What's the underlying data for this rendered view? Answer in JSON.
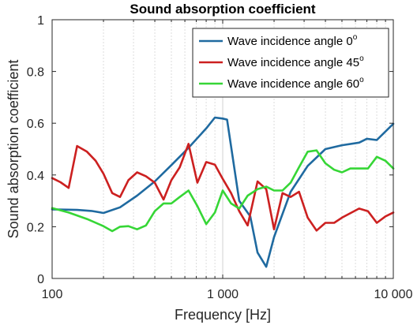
{
  "chart_data": {
    "type": "line",
    "title": "Sound absorption coefficient",
    "xlabel": "Frequency [Hz]",
    "ylabel": "Sound absorption coefficient",
    "xscale": "log",
    "xlim": [
      100,
      10000
    ],
    "ylim": [
      0,
      1
    ],
    "grid": "x-major-and-minor",
    "legend_position": "top-right",
    "x_ticks": [
      {
        "value": 100,
        "label": "100"
      },
      {
        "value": 1000,
        "label": "1 000"
      },
      {
        "value": 10000,
        "label": "10 000"
      }
    ],
    "y_ticks": [
      {
        "value": 0,
        "label": "0"
      },
      {
        "value": 0.2,
        "label": "0.2"
      },
      {
        "value": 0.4,
        "label": "0.4"
      },
      {
        "value": 0.6,
        "label": "0.6"
      },
      {
        "value": 0.8,
        "label": "0.8"
      },
      {
        "value": 1,
        "label": "1"
      }
    ],
    "series": [
      {
        "name": "Wave incidence angle 0",
        "name_sup": "o",
        "color": "#1f6aa0",
        "points": [
          [
            100,
            0.267
          ],
          [
            140,
            0.265
          ],
          [
            170,
            0.261
          ],
          [
            200,
            0.253
          ],
          [
            250,
            0.275
          ],
          [
            315,
            0.32
          ],
          [
            400,
            0.375
          ],
          [
            500,
            0.438
          ],
          [
            630,
            0.505
          ],
          [
            800,
            0.58
          ],
          [
            900,
            0.622
          ],
          [
            1000,
            0.618
          ],
          [
            1060,
            0.614
          ],
          [
            1250,
            0.3
          ],
          [
            1450,
            0.24
          ],
          [
            1600,
            0.1
          ],
          [
            1800,
            0.045
          ],
          [
            2000,
            0.16
          ],
          [
            2500,
            0.335
          ],
          [
            3150,
            0.435
          ],
          [
            4000,
            0.5
          ],
          [
            5000,
            0.515
          ],
          [
            6300,
            0.525
          ],
          [
            7000,
            0.54
          ],
          [
            8000,
            0.535
          ],
          [
            10000,
            0.598
          ]
        ]
      },
      {
        "name": "Wave incidence angle 45",
        "name_sup": "o",
        "color": "#cc2020",
        "points": [
          [
            100,
            0.388
          ],
          [
            112,
            0.372
          ],
          [
            125,
            0.35
          ],
          [
            140,
            0.512
          ],
          [
            160,
            0.49
          ],
          [
            180,
            0.455
          ],
          [
            200,
            0.405
          ],
          [
            225,
            0.33
          ],
          [
            250,
            0.315
          ],
          [
            280,
            0.38
          ],
          [
            315,
            0.41
          ],
          [
            355,
            0.395
          ],
          [
            400,
            0.37
          ],
          [
            450,
            0.305
          ],
          [
            500,
            0.38
          ],
          [
            560,
            0.43
          ],
          [
            630,
            0.52
          ],
          [
            710,
            0.37
          ],
          [
            800,
            0.45
          ],
          [
            900,
            0.44
          ],
          [
            1000,
            0.385
          ],
          [
            1120,
            0.33
          ],
          [
            1250,
            0.26
          ],
          [
            1400,
            0.205
          ],
          [
            1600,
            0.375
          ],
          [
            1800,
            0.345
          ],
          [
            2000,
            0.19
          ],
          [
            2240,
            0.33
          ],
          [
            2500,
            0.315
          ],
          [
            2800,
            0.335
          ],
          [
            3150,
            0.235
          ],
          [
            3550,
            0.185
          ],
          [
            4000,
            0.215
          ],
          [
            4500,
            0.215
          ],
          [
            5000,
            0.235
          ],
          [
            6300,
            0.27
          ],
          [
            7100,
            0.26
          ],
          [
            8000,
            0.215
          ],
          [
            9000,
            0.24
          ],
          [
            10000,
            0.255
          ]
        ]
      },
      {
        "name": "Wave incidence angle 60",
        "name_sup": "o",
        "color": "#36d636",
        "points": [
          [
            100,
            0.272
          ],
          [
            125,
            0.255
          ],
          [
            160,
            0.23
          ],
          [
            200,
            0.202
          ],
          [
            225,
            0.183
          ],
          [
            250,
            0.2
          ],
          [
            280,
            0.202
          ],
          [
            315,
            0.19
          ],
          [
            355,
            0.205
          ],
          [
            400,
            0.26
          ],
          [
            450,
            0.29
          ],
          [
            500,
            0.29
          ],
          [
            560,
            0.315
          ],
          [
            630,
            0.34
          ],
          [
            710,
            0.28
          ],
          [
            800,
            0.21
          ],
          [
            900,
            0.255
          ],
          [
            1000,
            0.34
          ],
          [
            1120,
            0.29
          ],
          [
            1250,
            0.27
          ],
          [
            1400,
            0.32
          ],
          [
            1600,
            0.345
          ],
          [
            1800,
            0.355
          ],
          [
            2000,
            0.34
          ],
          [
            2240,
            0.34
          ],
          [
            2500,
            0.37
          ],
          [
            2800,
            0.43
          ],
          [
            3150,
            0.49
          ],
          [
            3550,
            0.495
          ],
          [
            4000,
            0.445
          ],
          [
            4500,
            0.42
          ],
          [
            5000,
            0.41
          ],
          [
            5600,
            0.425
          ],
          [
            6300,
            0.425
          ],
          [
            7100,
            0.425
          ],
          [
            8000,
            0.47
          ],
          [
            9000,
            0.455
          ],
          [
            10000,
            0.425
          ]
        ]
      }
    ]
  }
}
